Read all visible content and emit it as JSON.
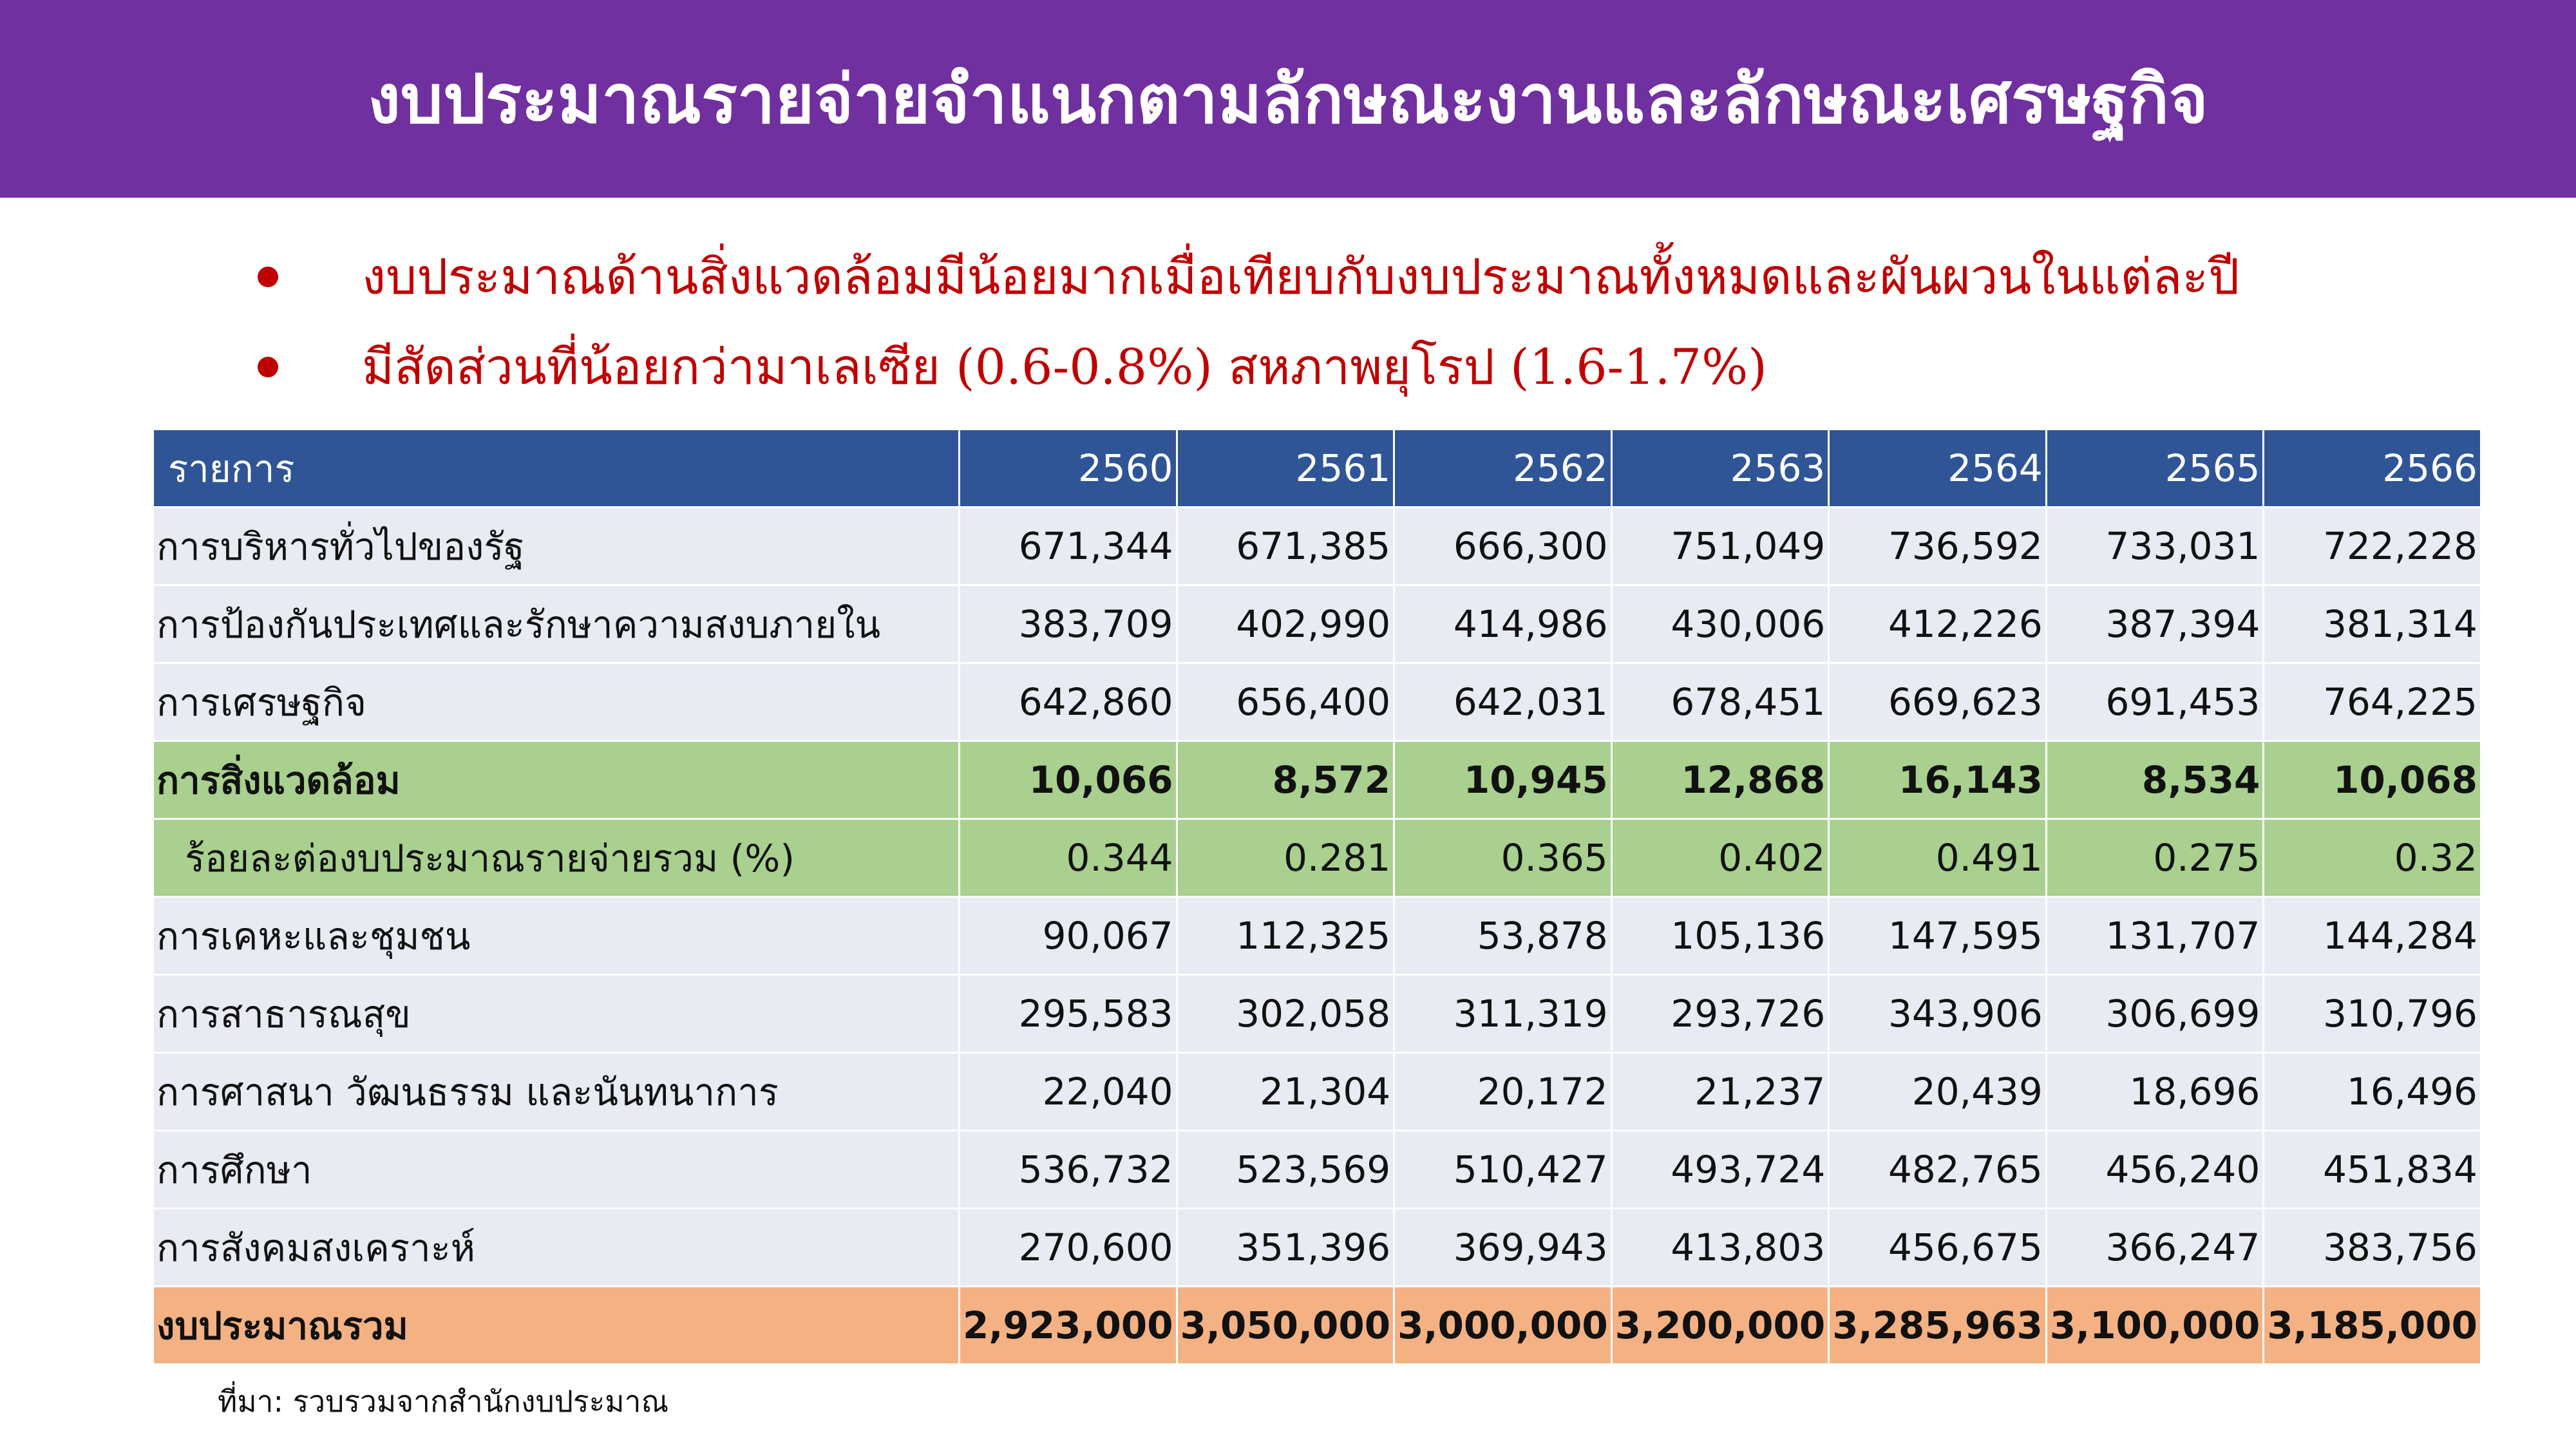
{
  "colors": {
    "title_bg": "#7030a0",
    "bullet_text": "#c00000",
    "header_bg": "#2f5597",
    "row_bg": "#e9ebf3",
    "highlight_bg": "#a9d08e",
    "total_bg": "#f4b183"
  },
  "header": {
    "title": "งบประมาณรายจ่ายจำแนกตามลักษณะงานและลักษณะเศรษฐกิจ"
  },
  "bullets": [
    "งบประมาณด้านสิ่งแวดล้อมมีน้อยมากเมื่อเทียบกับงบประมาณทั้งหมดและผันผวนในแต่ละปี",
    "มีสัดส่วนที่น้อยกว่ามาเลเซีย (0.6-0.8%) สหภาพยุโรป (1.6-1.7%)"
  ],
  "table": {
    "columns": [
      "รายการ",
      "2560",
      "2561",
      "2562",
      "2563",
      "2564",
      "2565",
      "2566"
    ],
    "rows": [
      {
        "label": "การบริหารทั่วไปของรัฐ",
        "values": [
          "671,344",
          "671,385",
          "666,300",
          "751,049",
          "736,592",
          "733,031",
          "722,228"
        ]
      },
      {
        "label": "การป้องกันประเทศและรักษาความสงบภายใน",
        "values": [
          "383,709",
          "402,990",
          "414,986",
          "430,006",
          "412,226",
          "387,394",
          "381,314"
        ]
      },
      {
        "label": "การเศรษฐกิจ",
        "values": [
          "642,860",
          "656,400",
          "642,031",
          "678,451",
          "669,623",
          "691,453",
          "764,225"
        ]
      },
      {
        "label": "การสิ่งแวดล้อม",
        "values": [
          "10,066",
          "8,572",
          "10,945",
          "12,868",
          "16,143",
          "8,534",
          "10,068"
        ]
      },
      {
        "label": "ร้อยละต่องบประมาณรายจ่ายรวม (%)",
        "values": [
          "0.344",
          "0.281",
          "0.365",
          "0.402",
          "0.491",
          "0.275",
          "0.32"
        ]
      },
      {
        "label": "การเคหะและชุมชน",
        "values": [
          "90,067",
          "112,325",
          "53,878",
          "105,136",
          "147,595",
          "131,707",
          "144,284"
        ]
      },
      {
        "label": "การสาธารณสุข",
        "values": [
          "295,583",
          "302,058",
          "311,319",
          "293,726",
          "343,906",
          "306,699",
          "310,796"
        ]
      },
      {
        "label": "การศาสนา วัฒนธรรม และนันทนาการ",
        "values": [
          "22,040",
          "21,304",
          "20,172",
          "21,237",
          "20,439",
          "18,696",
          "16,496"
        ]
      },
      {
        "label": "การศึกษา",
        "values": [
          "536,732",
          "523,569",
          "510,427",
          "493,724",
          "482,765",
          "456,240",
          "451,834"
        ]
      },
      {
        "label": "การสังคมสงเคราะห์",
        "values": [
          "270,600",
          "351,396",
          "369,943",
          "413,803",
          "456,675",
          "366,247",
          "383,756"
        ]
      },
      {
        "label": "งบประมาณรวม",
        "values": [
          "2,923,000",
          "3,050,000",
          "3,000,000",
          "3,200,000",
          "3,285,963",
          "3,100,000",
          "3,185,000"
        ]
      }
    ]
  },
  "source": "ที่มา: รวบรวมจากสำนักงบประมาณ"
}
